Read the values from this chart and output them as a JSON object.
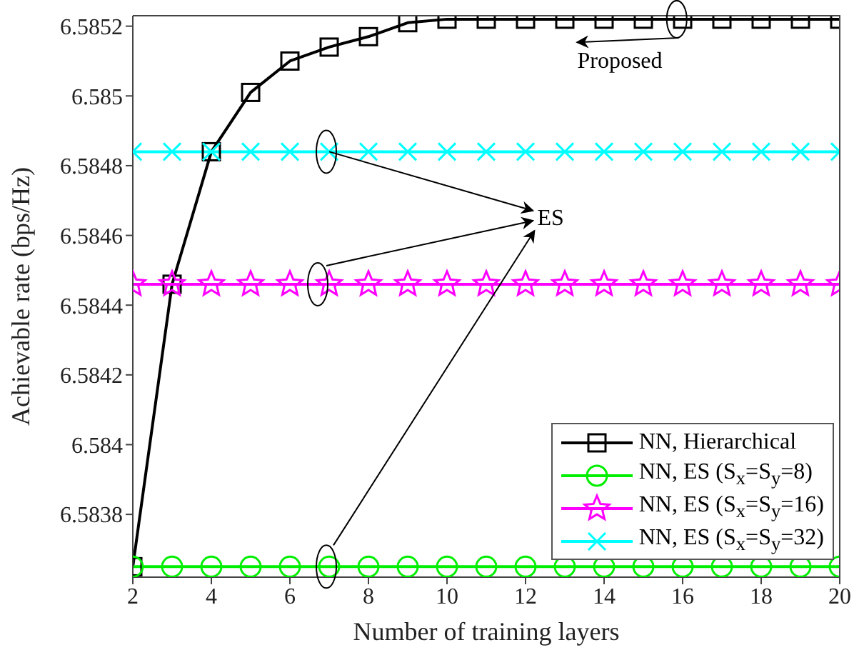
{
  "chart_data": {
    "type": "line",
    "xlabel": "Number of training layers",
    "ylabel": "Achievable rate (bps/Hz)",
    "x": [
      2,
      3,
      4,
      5,
      6,
      7,
      8,
      9,
      10,
      11,
      12,
      13,
      14,
      15,
      16,
      17,
      18,
      19,
      20
    ],
    "series": [
      {
        "name": "NN, Hierarchical",
        "color": "#000000",
        "marker": "square",
        "values": [
          6.58365,
          6.58446,
          6.58484,
          6.58501,
          6.5851,
          6.58514,
          6.58517,
          6.58521,
          6.58522,
          6.58522,
          6.58522,
          6.58522,
          6.58522,
          6.58522,
          6.58522,
          6.58522,
          6.58522,
          6.58522,
          6.58522
        ]
      },
      {
        "name": "NN, ES (S$_{x}$=S$_{y}$=8)",
        "color": "#00ee00",
        "marker": "circle",
        "values": [
          6.58365,
          6.58365,
          6.58365,
          6.58365,
          6.58365,
          6.58365,
          6.58365,
          6.58365,
          6.58365,
          6.58365,
          6.58365,
          6.58365,
          6.58365,
          6.58365,
          6.58365,
          6.58365,
          6.58365,
          6.58365,
          6.58365
        ]
      },
      {
        "name": "NN, ES (S$_{x}$=S$_{y}$=16)",
        "color": "#ff00ff",
        "marker": "star",
        "values": [
          6.58446,
          6.58446,
          6.58446,
          6.58446,
          6.58446,
          6.58446,
          6.58446,
          6.58446,
          6.58446,
          6.58446,
          6.58446,
          6.58446,
          6.58446,
          6.58446,
          6.58446,
          6.58446,
          6.58446,
          6.58446,
          6.58446
        ]
      },
      {
        "name": "NN, ES (S$_{x}$=S$_{y}$=32)",
        "color": "#00ffff",
        "marker": "cross",
        "values": [
          6.58484,
          6.58484,
          6.58484,
          6.58484,
          6.58484,
          6.58484,
          6.58484,
          6.58484,
          6.58484,
          6.58484,
          6.58484,
          6.58484,
          6.58484,
          6.58484,
          6.58484,
          6.58484,
          6.58484,
          6.58484,
          6.58484
        ]
      }
    ],
    "xlim": [
      2,
      20
    ],
    "xticks": [
      2,
      4,
      6,
      8,
      10,
      12,
      14,
      16,
      18,
      20
    ],
    "ylim": [
      6.58362,
      6.58523
    ],
    "yticks": [
      6.5838,
      6.584,
      6.5842,
      6.5844,
      6.5846,
      6.5848,
      6.585,
      6.5852
    ],
    "grid": false,
    "legend": "bottom right",
    "line_style": "solid",
    "annotations": [
      "Proposed",
      "ES"
    ]
  }
}
